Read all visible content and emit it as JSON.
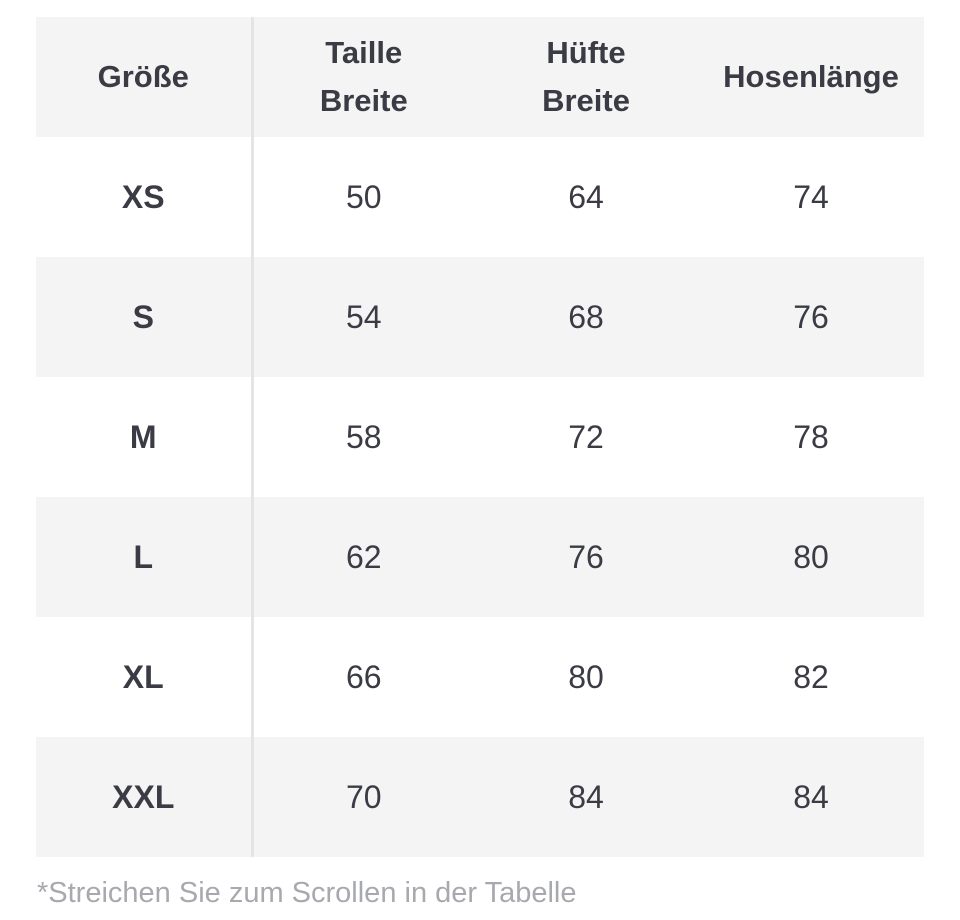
{
  "table": {
    "headers": [
      {
        "line1": "Größe",
        "line2": ""
      },
      {
        "line1": "Taille",
        "line2": "Breite"
      },
      {
        "line1": "Hüfte",
        "line2": "Breite"
      },
      {
        "line1": "Hosenlänge",
        "line2": ""
      }
    ],
    "rows": [
      {
        "size": "XS",
        "taille": "50",
        "huefte": "64",
        "laenge": "74"
      },
      {
        "size": "S",
        "taille": "54",
        "huefte": "68",
        "laenge": "76"
      },
      {
        "size": "M",
        "taille": "58",
        "huefte": "72",
        "laenge": "78"
      },
      {
        "size": "L",
        "taille": "62",
        "huefte": "76",
        "laenge": "80"
      },
      {
        "size": "XL",
        "taille": "66",
        "huefte": "80",
        "laenge": "82"
      },
      {
        "size": "XXL",
        "taille": "70",
        "huefte": "84",
        "laenge": "84"
      }
    ]
  },
  "footnote": "*Streichen Sie zum Scrollen in der Tabelle",
  "colors": {
    "shaded_row": "#f4f4f4",
    "text": "#3a3b44",
    "footnote": "#a8a9ae",
    "divider": "#e4e4e4"
  }
}
